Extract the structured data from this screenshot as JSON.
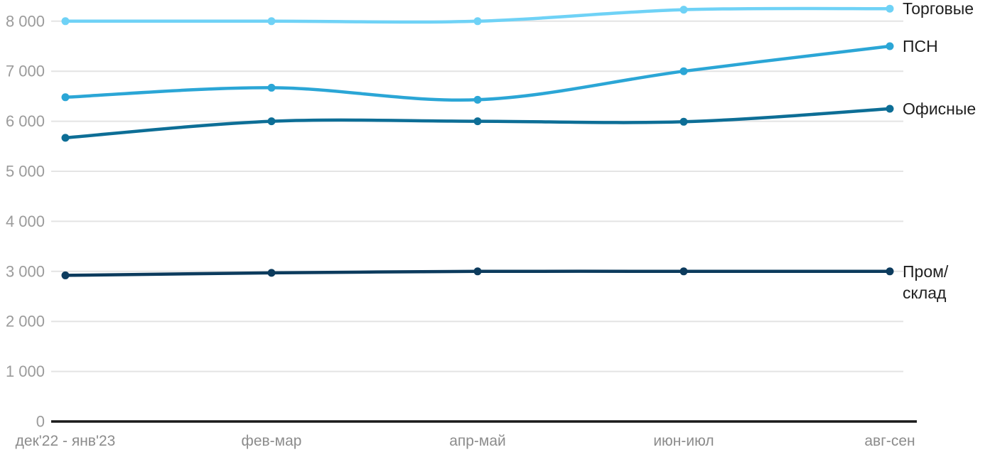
{
  "chart_data": {
    "type": "line",
    "title": "",
    "xlabel": "",
    "ylabel": "",
    "grid": "horizontal",
    "legend_position": "right-of-line-ends",
    "ylim": [
      0,
      8420
    ],
    "categories": [
      "дек'22 - янв'23",
      "фев-мар",
      "апр-май",
      "июн-июл",
      "авг-сен"
    ],
    "yticks": [
      {
        "value": 0,
        "label": "0"
      },
      {
        "value": 1000,
        "label": "1 000"
      },
      {
        "value": 2000,
        "label": "2 000"
      },
      {
        "value": 3000,
        "label": "3 000"
      },
      {
        "value": 4000,
        "label": "4 000"
      },
      {
        "value": 5000,
        "label": "5 000"
      },
      {
        "value": 6000,
        "label": "6 000"
      },
      {
        "value": 7000,
        "label": "7 000"
      },
      {
        "value": 8000,
        "label": "8 000"
      }
    ],
    "series": [
      {
        "name": "Торговые",
        "label_lines": [
          "Торговые"
        ],
        "color": "#6fd2f6",
        "values": [
          8000,
          8000,
          8000,
          8230,
          8250
        ]
      },
      {
        "name": "ПСН",
        "label_lines": [
          "ПСН"
        ],
        "color": "#2ba6d6",
        "values": [
          6480,
          6670,
          6430,
          7000,
          7500
        ]
      },
      {
        "name": "Офисные",
        "label_lines": [
          "Офисные"
        ],
        "color": "#0d6e96",
        "values": [
          5670,
          6000,
          6000,
          5990,
          6250
        ]
      },
      {
        "name": "Пром/склад",
        "label_lines": [
          "Пром/",
          "склад"
        ],
        "color": "#0c3b5d",
        "values": [
          2920,
          2970,
          3000,
          3000,
          3000
        ]
      }
    ]
  }
}
